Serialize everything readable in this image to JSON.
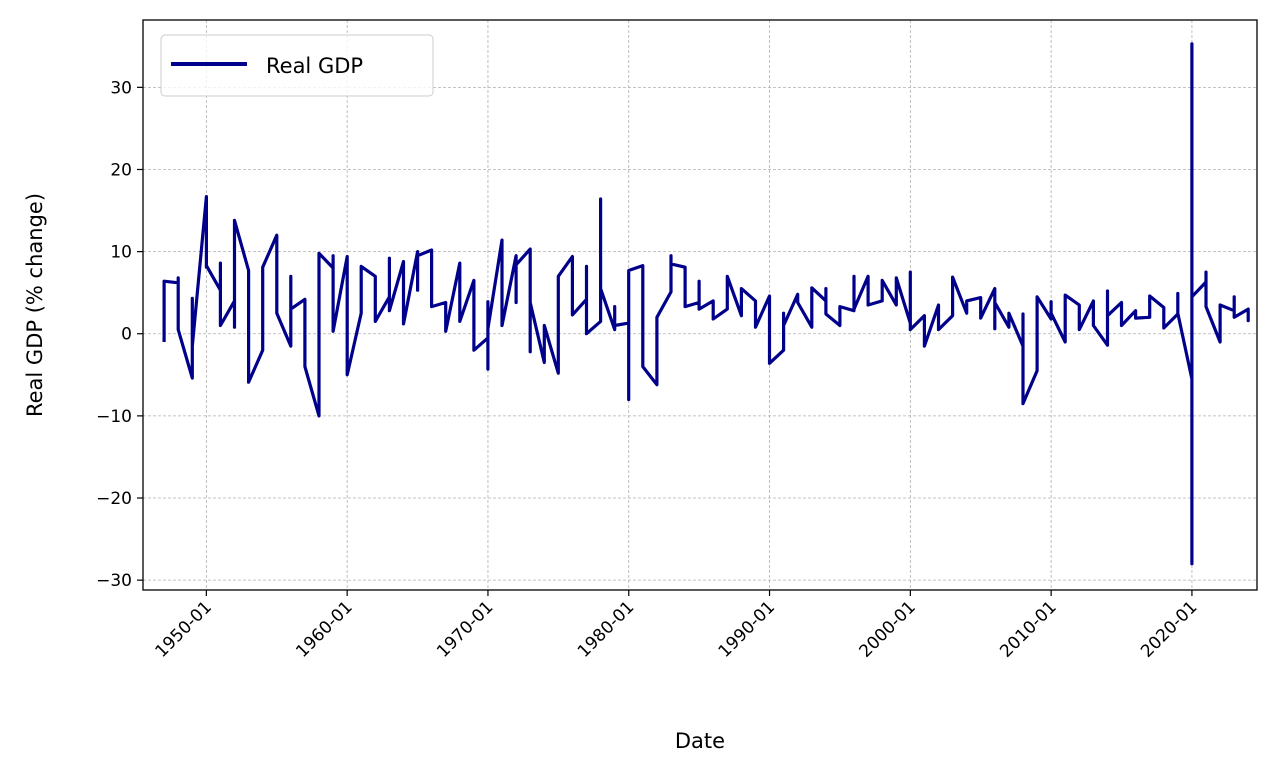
{
  "chart_data": {
    "type": "line",
    "title": "",
    "xlabel": "Date",
    "ylabel": "Real GDP (% change)",
    "xlim": [
      "1945-07-01",
      "2024-08-15"
    ],
    "ylim": [
      -31.2,
      38.2
    ],
    "grid": true,
    "legend": {
      "position": "upper-left"
    },
    "xticks": [
      "1950-01",
      "1960-01",
      "1970-01",
      "1980-01",
      "1990-01",
      "2000-01",
      "2010-01",
      "2020-01"
    ],
    "yticks": [
      30,
      20,
      10,
      0,
      -10,
      -20,
      -30
    ],
    "ytick_labels": [
      "30",
      "20",
      "10",
      "0",
      "−10",
      "−20",
      "−30"
    ],
    "series": [
      {
        "name": "Real GDP",
        "color": "#00008B",
        "points": [
          [
            "1947-01",
            -1.0
          ],
          [
            "1947-01",
            6.4
          ],
          [
            "1948-01",
            6.2
          ],
          [
            "1948-01",
            6.8
          ],
          [
            "1948-01",
            0.5
          ],
          [
            "1949-01",
            -5.4
          ],
          [
            "1949-01",
            4.3
          ],
          [
            "1949-01",
            -1.5
          ],
          [
            "1950-01",
            16.7
          ],
          [
            "1950-01",
            8.1
          ],
          [
            "1950-01",
            12.8
          ],
          [
            "1950-01",
            8.3
          ],
          [
            "1951-01",
            5.3
          ],
          [
            "1951-01",
            8.6
          ],
          [
            "1951-01",
            1.0
          ],
          [
            "1952-01",
            4.0
          ],
          [
            "1952-01",
            0.8
          ],
          [
            "1952-01",
            13.8
          ],
          [
            "1953-01",
            7.7
          ],
          [
            "1953-01",
            -5.9
          ],
          [
            "1954-01",
            -2.0
          ],
          [
            "1954-01",
            8.1
          ],
          [
            "1955-01",
            12.0
          ],
          [
            "1955-01",
            2.5
          ],
          [
            "1956-01",
            -1.5
          ],
          [
            "1956-01",
            7.0
          ],
          [
            "1956-01",
            3.0
          ],
          [
            "1957-01",
            4.2
          ],
          [
            "1957-01",
            -4.0
          ],
          [
            "1958-01",
            -10.0
          ],
          [
            "1958-01",
            9.8
          ],
          [
            "1959-01",
            8.0
          ],
          [
            "1959-01",
            9.5
          ],
          [
            "1959-01",
            0.3
          ],
          [
            "1960-01",
            9.4
          ],
          [
            "1960-01",
            -5.0
          ],
          [
            "1961-01",
            2.5
          ],
          [
            "1961-01",
            8.2
          ],
          [
            "1962-01",
            7.0
          ],
          [
            "1962-01",
            1.5
          ],
          [
            "1963-01",
            4.5
          ],
          [
            "1963-01",
            9.2
          ],
          [
            "1963-01",
            2.8
          ],
          [
            "1964-01",
            8.8
          ],
          [
            "1964-01",
            1.2
          ],
          [
            "1965-01",
            10.0
          ],
          [
            "1965-01",
            5.3
          ],
          [
            "1965-01",
            9.5
          ],
          [
            "1966-01",
            10.2
          ],
          [
            "1966-01",
            3.3
          ],
          [
            "1967-01",
            3.8
          ],
          [
            "1967-01",
            0.3
          ],
          [
            "1968-01",
            8.6
          ],
          [
            "1968-01",
            1.5
          ],
          [
            "1969-01",
            6.5
          ],
          [
            "1969-01",
            -2.0
          ],
          [
            "1970-01",
            -0.5
          ],
          [
            "1970-01",
            -4.3
          ],
          [
            "1970-01",
            3.9
          ],
          [
            "1970-01",
            0.6
          ],
          [
            "1971-01",
            11.4
          ],
          [
            "1971-01",
            1.0
          ],
          [
            "1972-01",
            9.5
          ],
          [
            "1972-01",
            3.8
          ],
          [
            "1972-01",
            8.4
          ],
          [
            "1973-01",
            10.3
          ],
          [
            "1973-01",
            -2.2
          ],
          [
            "1973-01",
            3.8
          ],
          [
            "1974-01",
            -3.5
          ],
          [
            "1974-01",
            1.0
          ],
          [
            "1975-01",
            -4.8
          ],
          [
            "1975-01",
            7.0
          ],
          [
            "1976-01",
            9.4
          ],
          [
            "1976-01",
            2.3
          ],
          [
            "1977-01",
            4.2
          ],
          [
            "1977-01",
            8.2
          ],
          [
            "1977-01",
            0.0
          ],
          [
            "1978-01",
            1.5
          ],
          [
            "1978-01",
            16.4
          ],
          [
            "1978-01",
            5.5
          ],
          [
            "1979-01",
            0.5
          ],
          [
            "1979-01",
            3.3
          ],
          [
            "1979-01",
            1.0
          ],
          [
            "1980-01",
            1.3
          ],
          [
            "1980-01",
            -8.0
          ],
          [
            "1980-01",
            7.7
          ],
          [
            "1981-01",
            8.3
          ],
          [
            "1981-01",
            -4.0
          ],
          [
            "1982-01",
            -6.2
          ],
          [
            "1982-01",
            2.0
          ],
          [
            "1983-01",
            5.1
          ],
          [
            "1983-01",
            9.5
          ],
          [
            "1983-01",
            8.5
          ],
          [
            "1984-01",
            8.1
          ],
          [
            "1984-01",
            3.3
          ],
          [
            "1985-01",
            3.8
          ],
          [
            "1985-01",
            6.4
          ],
          [
            "1985-01",
            3.0
          ],
          [
            "1986-01",
            4.0
          ],
          [
            "1986-01",
            1.8
          ],
          [
            "1987-01",
            3.0
          ],
          [
            "1987-01",
            7.0
          ],
          [
            "1988-01",
            2.2
          ],
          [
            "1988-01",
            5.5
          ],
          [
            "1989-01",
            4.0
          ],
          [
            "1989-01",
            0.8
          ],
          [
            "1990-01",
            4.6
          ],
          [
            "1990-01",
            -3.6
          ],
          [
            "1991-01",
            -2.0
          ],
          [
            "1991-01",
            2.5
          ],
          [
            "1991-01",
            1.0
          ],
          [
            "1992-01",
            4.8
          ],
          [
            "1992-01",
            3.8
          ],
          [
            "1993-01",
            0.8
          ],
          [
            "1993-01",
            5.6
          ],
          [
            "1994-01",
            4.0
          ],
          [
            "1994-01",
            5.5
          ],
          [
            "1994-01",
            2.4
          ],
          [
            "1995-01",
            1.0
          ],
          [
            "1995-01",
            3.3
          ],
          [
            "1996-01",
            2.8
          ],
          [
            "1996-01",
            7.0
          ],
          [
            "1996-01",
            3.0
          ],
          [
            "1997-01",
            7.0
          ],
          [
            "1997-01",
            3.5
          ],
          [
            "1998-01",
            4.0
          ],
          [
            "1998-01",
            6.5
          ],
          [
            "1999-01",
            3.5
          ],
          [
            "1999-01",
            6.8
          ],
          [
            "2000-01",
            1.3
          ],
          [
            "2000-01",
            7.5
          ],
          [
            "2000-01",
            0.5
          ],
          [
            "2001-01",
            2.2
          ],
          [
            "2001-01",
            -1.5
          ],
          [
            "2002-01",
            3.5
          ],
          [
            "2002-01",
            0.5
          ],
          [
            "2003-01",
            2.2
          ],
          [
            "2003-01",
            6.9
          ],
          [
            "2004-01",
            2.5
          ],
          [
            "2004-01",
            4.0
          ],
          [
            "2005-01",
            4.4
          ],
          [
            "2005-01",
            1.9
          ],
          [
            "2006-01",
            5.5
          ],
          [
            "2006-01",
            0.6
          ],
          [
            "2006-01",
            3.8
          ],
          [
            "2007-01",
            0.8
          ],
          [
            "2007-01",
            2.5
          ],
          [
            "2008-01",
            -1.5
          ],
          [
            "2008-01",
            2.4
          ],
          [
            "2008-01",
            -8.5
          ],
          [
            "2009-01",
            -4.5
          ],
          [
            "2009-01",
            4.5
          ],
          [
            "2010-01",
            1.8
          ],
          [
            "2010-01",
            3.9
          ],
          [
            "2010-01",
            2.5
          ],
          [
            "2011-01",
            -1.0
          ],
          [
            "2011-01",
            4.7
          ],
          [
            "2012-01",
            3.5
          ],
          [
            "2012-01",
            0.5
          ],
          [
            "2013-01",
            4.0
          ],
          [
            "2013-01",
            1.0
          ],
          [
            "2014-01",
            -1.4
          ],
          [
            "2014-01",
            5.2
          ],
          [
            "2014-01",
            2.2
          ],
          [
            "2015-01",
            3.8
          ],
          [
            "2015-01",
            1.0
          ],
          [
            "2016-01",
            2.8
          ],
          [
            "2016-01",
            1.9
          ],
          [
            "2017-01",
            2.0
          ],
          [
            "2017-01",
            4.6
          ],
          [
            "2018-01",
            3.2
          ],
          [
            "2018-01",
            0.7
          ],
          [
            "2019-01",
            2.4
          ],
          [
            "2019-01",
            4.9
          ],
          [
            "2019-01",
            2.5
          ],
          [
            "2020-01",
            -5.5
          ],
          [
            "2020-01",
            -28.0
          ],
          [
            "2020-01",
            35.3
          ],
          [
            "2020-01",
            4.5
          ],
          [
            "2021-01",
            6.3
          ],
          [
            "2021-01",
            7.5
          ],
          [
            "2021-01",
            3.3
          ],
          [
            "2022-01",
            -1.0
          ],
          [
            "2022-01",
            3.5
          ],
          [
            "2023-01",
            2.8
          ],
          [
            "2023-01",
            4.5
          ],
          [
            "2023-01",
            2.0
          ],
          [
            "2024-01",
            3.0
          ],
          [
            "2024-01",
            1.6
          ],
          [
            "2024-01",
            3.0
          ]
        ]
      }
    ]
  }
}
